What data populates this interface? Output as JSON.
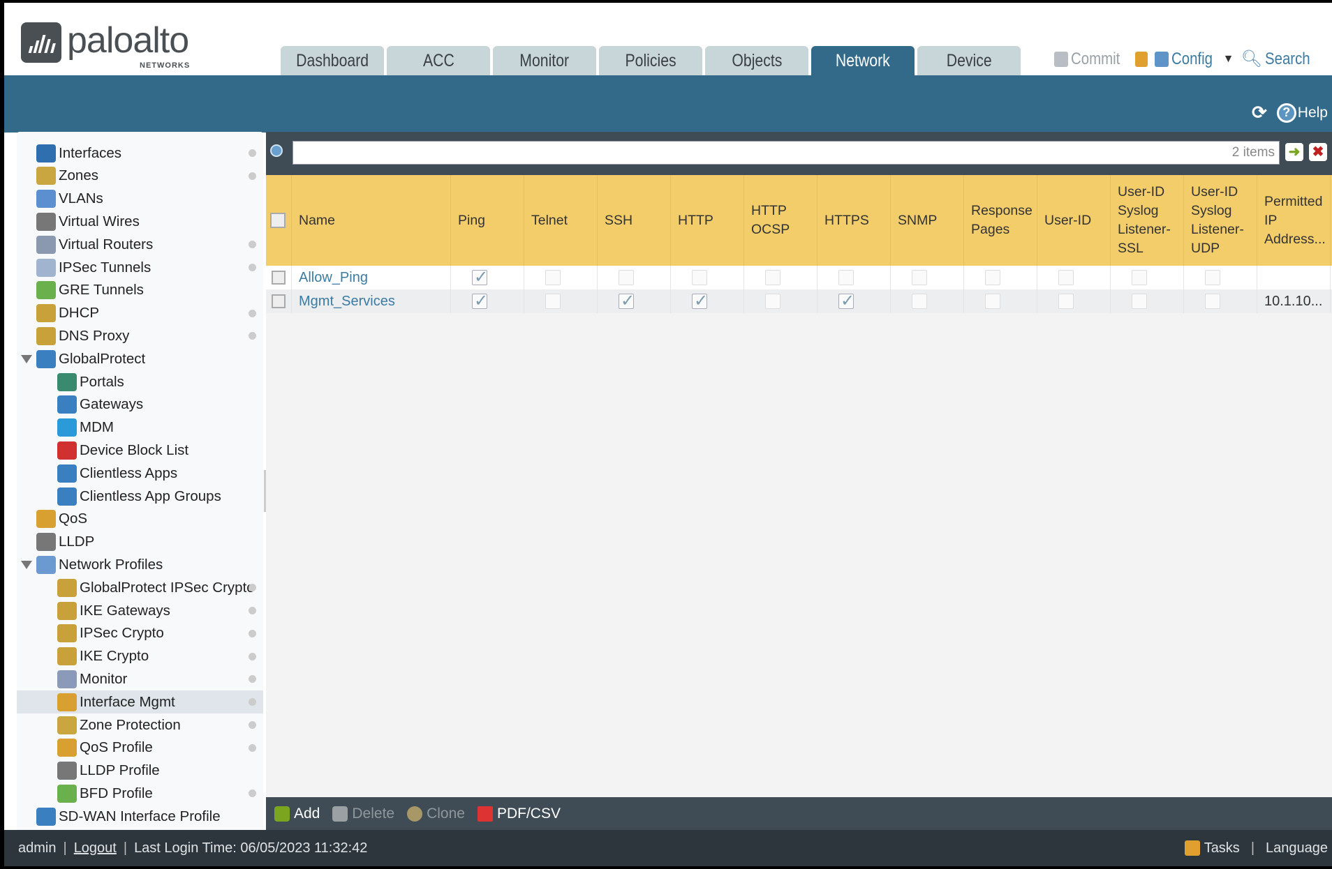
{
  "logo": {
    "text": "paloalto",
    "sub": "NETWORKS"
  },
  "tabs": [
    "Dashboard",
    "ACC",
    "Monitor",
    "Policies",
    "Objects",
    "Network",
    "Device"
  ],
  "active_tab": "Network",
  "toplinks": {
    "commit": "Commit",
    "config": "Config",
    "search": "Search"
  },
  "band": {
    "help": "Help"
  },
  "sidebar": {
    "items": [
      {
        "label": "Interfaces",
        "level": 0,
        "dot": true,
        "icon": "interfaces-icon",
        "color": "#2f6fb0"
      },
      {
        "label": "Zones",
        "level": 0,
        "dot": true,
        "icon": "zones-icon",
        "color": "#c9a640"
      },
      {
        "label": "VLANs",
        "level": 0,
        "dot": false,
        "icon": "vlans-icon",
        "color": "#5c8fd0"
      },
      {
        "label": "Virtual Wires",
        "level": 0,
        "dot": false,
        "icon": "virtual-wires-icon",
        "color": "#777"
      },
      {
        "label": "Virtual Routers",
        "level": 0,
        "dot": true,
        "icon": "virtual-routers-icon",
        "color": "#8a98b0"
      },
      {
        "label": "IPSec Tunnels",
        "level": 0,
        "dot": true,
        "icon": "ipsec-tunnels-icon",
        "color": "#a0b4d0"
      },
      {
        "label": "GRE Tunnels",
        "level": 0,
        "dot": false,
        "icon": "gre-tunnels-icon",
        "color": "#6ab04c"
      },
      {
        "label": "DHCP",
        "level": 0,
        "dot": true,
        "icon": "dhcp-icon",
        "color": "#c9a13a"
      },
      {
        "label": "DNS Proxy",
        "level": 0,
        "dot": true,
        "icon": "dns-proxy-icon",
        "color": "#c9a13a"
      },
      {
        "label": "GlobalProtect",
        "level": 0,
        "dot": false,
        "expand": true,
        "icon": "globalprotect-icon",
        "color": "#3a7fc0"
      },
      {
        "label": "Portals",
        "level": 1,
        "dot": false,
        "icon": "portals-icon",
        "color": "#3a8a70"
      },
      {
        "label": "Gateways",
        "level": 1,
        "dot": false,
        "icon": "gateways-icon",
        "color": "#3a7fc0"
      },
      {
        "label": "MDM",
        "level": 1,
        "dot": false,
        "icon": "mdm-icon",
        "color": "#2a9ad8"
      },
      {
        "label": "Device Block List",
        "level": 1,
        "dot": false,
        "icon": "device-block-list-icon",
        "color": "#d03030"
      },
      {
        "label": "Clientless Apps",
        "level": 1,
        "dot": false,
        "icon": "clientless-apps-icon",
        "color": "#3a7fc0"
      },
      {
        "label": "Clientless App Groups",
        "level": 1,
        "dot": false,
        "icon": "clientless-app-groups-icon",
        "color": "#3a7fc0"
      },
      {
        "label": "QoS",
        "level": 0,
        "dot": false,
        "icon": "qos-icon",
        "color": "#d8a030"
      },
      {
        "label": "LLDP",
        "level": 0,
        "dot": false,
        "icon": "lldp-icon",
        "color": "#777"
      },
      {
        "label": "Network Profiles",
        "level": 0,
        "dot": false,
        "expand": true,
        "icon": "network-profiles-icon",
        "color": "#6a9ad0"
      },
      {
        "label": "GlobalProtect IPSec Crypto",
        "level": 1,
        "dot": true,
        "icon": "lock-icon",
        "color": "#c9a13a"
      },
      {
        "label": "IKE Gateways",
        "level": 1,
        "dot": true,
        "icon": "ike-gateways-icon",
        "color": "#c9a13a"
      },
      {
        "label": "IPSec Crypto",
        "level": 1,
        "dot": true,
        "icon": "lock-icon",
        "color": "#c9a13a"
      },
      {
        "label": "IKE Crypto",
        "level": 1,
        "dot": true,
        "icon": "lock-icon",
        "color": "#c9a13a"
      },
      {
        "label": "Monitor",
        "level": 1,
        "dot": true,
        "icon": "monitor-icon",
        "color": "#8a9ab8"
      },
      {
        "label": "Interface Mgmt",
        "level": 1,
        "dot": true,
        "selected": true,
        "icon": "interface-mgmt-icon",
        "color": "#d8a030"
      },
      {
        "label": "Zone Protection",
        "level": 1,
        "dot": true,
        "icon": "zone-protection-icon",
        "color": "#c9a640"
      },
      {
        "label": "QoS Profile",
        "level": 1,
        "dot": true,
        "icon": "qos-profile-icon",
        "color": "#d8a030"
      },
      {
        "label": "LLDP Profile",
        "level": 1,
        "dot": false,
        "icon": "lldp-profile-icon",
        "color": "#777"
      },
      {
        "label": "BFD Profile",
        "level": 1,
        "dot": true,
        "icon": "bfd-profile-icon",
        "color": "#6ab04c"
      },
      {
        "label": "SD-WAN Interface Profile",
        "level": 0,
        "dot": false,
        "icon": "sdwan-profile-icon",
        "color": "#3a7fc0"
      }
    ]
  },
  "search": {
    "count": "2 items"
  },
  "table": {
    "columns": [
      "Name",
      "Ping",
      "Telnet",
      "SSH",
      "HTTP",
      "HTTP\nOCSP",
      "HTTPS",
      "SNMP",
      "Response\nPages",
      "User-ID",
      "User-ID\nSyslog\nListener-\nSSL",
      "User-ID\nSyslog\nListener-\nUDP",
      "Permitted\nIP\nAddress..."
    ],
    "rows": [
      {
        "name": "Allow_Ping",
        "checks": [
          true,
          false,
          false,
          false,
          false,
          false,
          false,
          false,
          false,
          false,
          false
        ],
        "permitted": ""
      },
      {
        "name": "Mgmt_Services",
        "checks": [
          true,
          false,
          true,
          true,
          false,
          true,
          false,
          false,
          false,
          false,
          false
        ],
        "permitted": "10.1.10..."
      }
    ]
  },
  "toolbar": {
    "add": "Add",
    "delete": "Delete",
    "clone": "Clone",
    "pdf": "PDF/CSV"
  },
  "footer": {
    "user": "admin",
    "logout": "Logout",
    "last_login": "Last Login Time: 06/05/2023 11:32:42",
    "tasks": "Tasks",
    "language": "Language"
  },
  "colors": {
    "brand_blue": "#336a8a",
    "table_header": "#f2cd6a",
    "link": "#3c7ba3"
  }
}
